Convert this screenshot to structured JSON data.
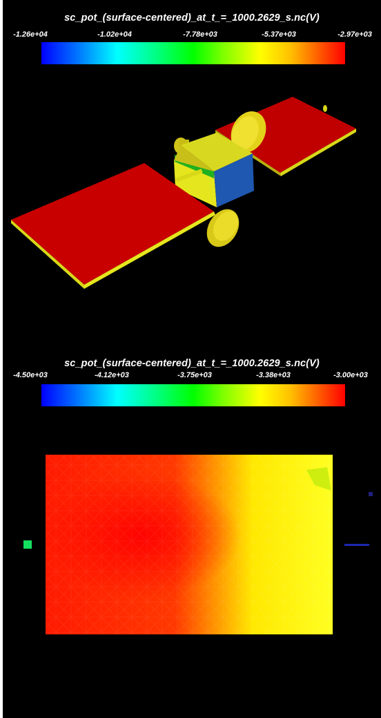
{
  "top_view": {
    "title": "sc_pot_(surface-centered)_at_t_=_1000.2629_s.nc(V)",
    "ticks": [
      "-1.26e+04",
      "-1.02e+04",
      "-7.78e+03",
      "-5.37e+03",
      "-2.97e+03"
    ]
  },
  "bottom_view": {
    "title": "sc_pot_(surface-centered)_at_t_=_1000.2629_s.nc(V)",
    "ticks": [
      "-4.50e+03",
      "-4.12e+03",
      "-3.75e+03",
      "-3.38e+03",
      "-3.00e+03"
    ]
  },
  "colors": {
    "background": "#000000",
    "panel_red": "#c80000",
    "body_yellow": "#e6e61e",
    "accent_green": "#14c814",
    "accent_blue": "#1e5ab4"
  }
}
